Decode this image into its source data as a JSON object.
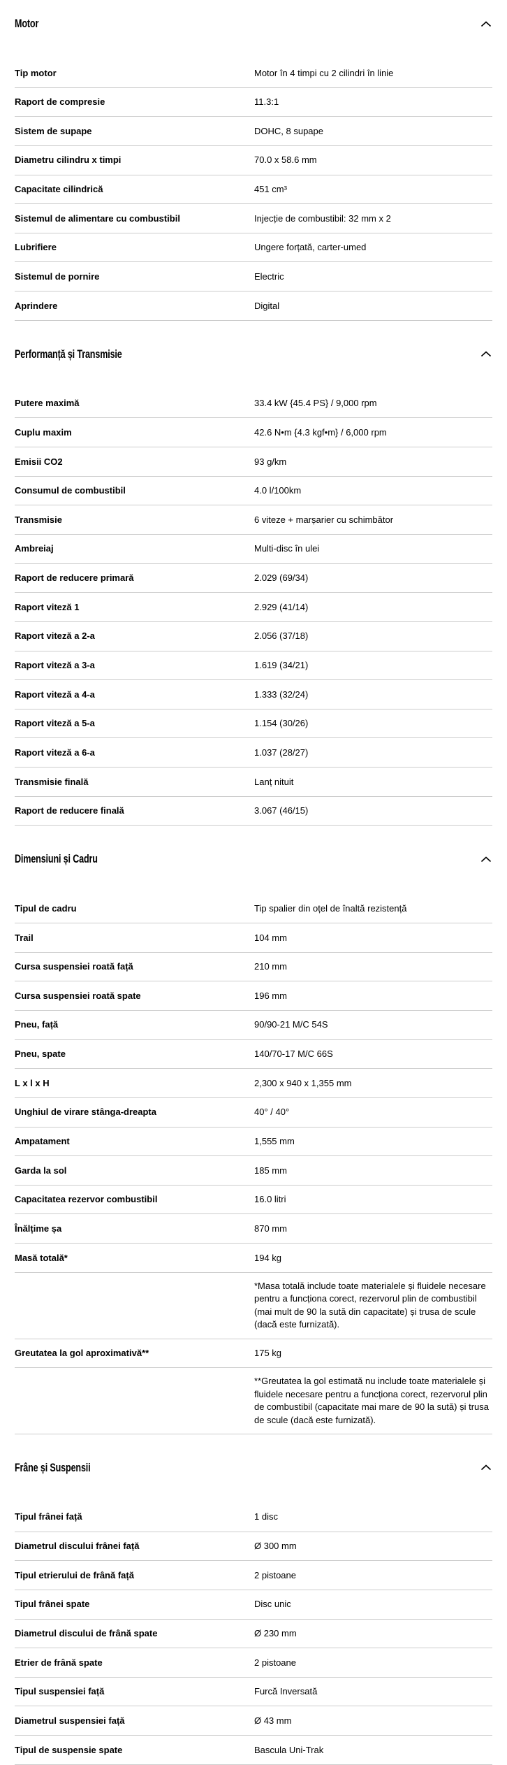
{
  "page": {
    "background": "#ffffff",
    "text_color": "#000000",
    "divider_color": "#cccccc",
    "collapse_icon": "chevron-up"
  },
  "sections": [
    {
      "title": "Motor",
      "rows": [
        {
          "label": "Tip motor",
          "value": "Motor în 4 timpi cu 2 cilindri în linie"
        },
        {
          "label": "Raport de compresie",
          "value": "11.3:1"
        },
        {
          "label": "Sistem de supape",
          "value": "DOHC, 8 supape"
        },
        {
          "label": "Diametru cilindru x timpi",
          "value": "70.0 x 58.6 mm"
        },
        {
          "label": "Capacitate cilindrică",
          "value": "451 cm³"
        },
        {
          "label": "Sistemul de alimentare cu combustibil",
          "value": "Injecție de combustibil: 32 mm x 2"
        },
        {
          "label": "Lubrifiere",
          "value": "Ungere forțată, carter-umed"
        },
        {
          "label": "Sistemul de pornire",
          "value": "Electric"
        },
        {
          "label": "Aprindere",
          "value": "Digital"
        }
      ]
    },
    {
      "title": "Performanță și Transmisie",
      "rows": [
        {
          "label": "Putere maximă",
          "value": "33.4 kW {45.4 PS} / 9,000 rpm"
        },
        {
          "label": "Cuplu maxim",
          "value": "42.6 N•m {4.3 kgf•m} / 6,000 rpm"
        },
        {
          "label": "Emisii CO2",
          "value": "93 g/km"
        },
        {
          "label": "Consumul de combustibil",
          "value": "4.0 l/100km"
        },
        {
          "label": "Transmisie",
          "value": "6 viteze + marșarier cu schimbător"
        },
        {
          "label": "Ambreiaj",
          "value": "Multi-disc în ulei"
        },
        {
          "label": "Raport de reducere primară",
          "value": "2.029 (69/34)"
        },
        {
          "label": "Raport viteză 1",
          "value": "2.929 (41/14)"
        },
        {
          "label": "Raport viteză a 2-a",
          "value": "2.056 (37/18)"
        },
        {
          "label": "Raport viteză a 3-a",
          "value": "1.619 (34/21)"
        },
        {
          "label": "Raport viteză a 4-a",
          "value": "1.333 (32/24)"
        },
        {
          "label": "Raport viteză a 5-a",
          "value": "1.154 (30/26)"
        },
        {
          "label": "Raport viteză a 6-a",
          "value": "1.037 (28/27)"
        },
        {
          "label": "Transmisie finală",
          "value": "Lanț nituit"
        },
        {
          "label": "Raport de reducere finală",
          "value": "3.067 (46/15)"
        }
      ]
    },
    {
      "title": "Dimensiuni și Cadru",
      "rows": [
        {
          "label": "Tipul de cadru",
          "value": "Tip spalier din oțel de înaltă rezistență"
        },
        {
          "label": "Trail",
          "value": "104 mm"
        },
        {
          "label": "Cursa suspensiei roată față",
          "value": "210 mm"
        },
        {
          "label": "Cursa suspensiei roată spate",
          "value": "196 mm"
        },
        {
          "label": "Pneu, față",
          "value": "90/90-21 M/C 54S"
        },
        {
          "label": "Pneu, spate",
          "value": "140/70-17 M/C 66S"
        },
        {
          "label": "L x l x H",
          "value": "2,300 x 940 x 1,355 mm"
        },
        {
          "label": "Unghiul de virare stânga-dreapta",
          "value": "40° / 40°"
        },
        {
          "label": "Ampatament",
          "value": "1,555 mm"
        },
        {
          "label": "Garda la sol",
          "value": "185 mm"
        },
        {
          "label": "Capacitatea rezervor combustibil",
          "value": "16.0 litri"
        },
        {
          "label": "Înălțime șa",
          "value": "870 mm"
        },
        {
          "label": "Masă totală*",
          "value": "194 kg"
        },
        {
          "label": "",
          "value": "*Masa totală include toate materialele și fluidele necesare pentru a funcționa corect, rezervorul plin de combustibil (mai mult de 90 la sută din capacitate) și trusa de scule (dacă este furnizată).",
          "footnote": true
        },
        {
          "label": "Greutatea la gol aproximativă**",
          "value": "175 kg"
        },
        {
          "label": "",
          "value": "**Greutatea la gol estimată nu include toate materialele și fluidele necesare pentru a funcționa corect, rezervorul plin de combustibil (capacitate mai mare de 90 la sută) și trusa de scule (dacă este furnizată).",
          "footnote": true
        }
      ]
    },
    {
      "title": "Frâne și Suspensii",
      "rows": [
        {
          "label": "Tipul frânei față",
          "value": "1 disc"
        },
        {
          "label": "Diametrul discului frânei față",
          "value": "Ø 300 mm"
        },
        {
          "label": "Tipul etrierului de frână față",
          "value": "2 pistoane"
        },
        {
          "label": "Tipul frânei spate",
          "value": "Disc unic"
        },
        {
          "label": "Diametrul discului de frână spate",
          "value": "Ø 230 mm"
        },
        {
          "label": "Etrier de frână spate",
          "value": "2 pistoane"
        },
        {
          "label": "Tipul suspensiei față",
          "value": "Furcă Inversată"
        },
        {
          "label": "Diametrul suspensiei față",
          "value": "Ø 43 mm"
        },
        {
          "label": "Tipul de suspensie spate",
          "value": "Bascula Uni-Trak"
        }
      ]
    }
  ]
}
